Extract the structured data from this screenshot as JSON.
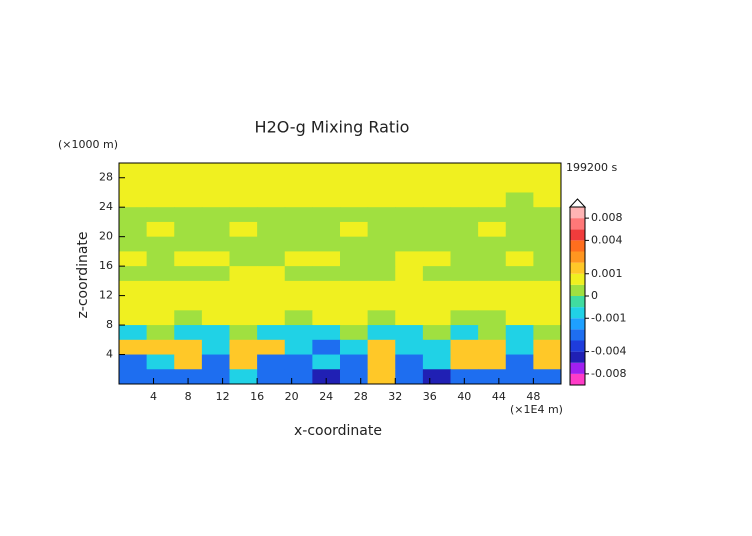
{
  "chart_data": {
    "type": "contour",
    "title": "H2O-g Mixing Ratio",
    "y_unit": "(×1000 m)",
    "x_unit": "(×1E4 m)",
    "time_label": "199200 s",
    "xlabel": "x-coordinate",
    "ylabel": "z-coordinate",
    "xlim": [
      0,
      51.2
    ],
    "ylim": [
      0,
      30
    ],
    "xticks": [
      4,
      8,
      12,
      16,
      20,
      24,
      28,
      32,
      36,
      40,
      44,
      48
    ],
    "yticks": [
      4,
      8,
      12,
      16,
      20,
      24,
      28
    ],
    "z": [
      [
        0.0007,
        0.0007,
        0.0007,
        0.0007,
        0.0007,
        0.0007,
        0.0007,
        0.0007,
        0.0007,
        0.0007,
        0.0007,
        0.0007,
        0.0007,
        0.0007,
        0.0007,
        0.0007
      ],
      [
        0.0007,
        0.0007,
        0.0007,
        0.0007,
        0.0007,
        0.0007,
        0.0007,
        0.0007,
        0.0007,
        0.0007,
        0.0007,
        0.0007,
        0.0007,
        0.0007,
        0.0007,
        0.0007
      ],
      [
        0.0007,
        0.0007,
        0.0007,
        0.0007,
        0.0007,
        0.0007,
        0.0007,
        0.0007,
        0.0007,
        0.0007,
        0.0007,
        0.0007,
        0.0007,
        0.0007,
        0.0002,
        0.0007
      ],
      [
        0.0002,
        0.0002,
        0.0002,
        0.0002,
        0.0002,
        0.0002,
        0.0002,
        0.0002,
        0.0002,
        0.0002,
        0.0002,
        0.0002,
        0.0002,
        0.0002,
        0.0002,
        0.0002
      ],
      [
        0.0002,
        0.0007,
        0.0002,
        0.0002,
        0.0007,
        0.0002,
        0.0002,
        0.0002,
        0.0007,
        0.0002,
        0.0002,
        0.0002,
        0.0002,
        0.0007,
        0.0002,
        0.0002
      ],
      [
        0.0002,
        0.0002,
        0.0002,
        0.0002,
        0.0002,
        0.0002,
        0.0002,
        0.0002,
        0.0002,
        0.0002,
        0.0002,
        0.0002,
        0.0002,
        0.0002,
        0.0002,
        0.0002
      ],
      [
        0.0007,
        0.0002,
        0.0007,
        0.0007,
        0.0002,
        0.0002,
        0.0007,
        0.0007,
        0.0002,
        0.0002,
        0.0007,
        0.0007,
        0.0002,
        0.0002,
        0.0007,
        0.0002
      ],
      [
        0.0002,
        0.0002,
        0.0002,
        0.0002,
        0.0007,
        0.0007,
        0.0002,
        0.0002,
        0.0002,
        0.0002,
        0.0007,
        0.0002,
        0.0002,
        0.0002,
        0.0002,
        0.0002
      ],
      [
        0.0007,
        0.0007,
        0.0007,
        0.0007,
        0.0007,
        0.0007,
        0.0007,
        0.0007,
        0.0007,
        0.0007,
        0.0007,
        0.0007,
        0.0007,
        0.0007,
        0.0007,
        0.0007
      ],
      [
        0.0007,
        0.0007,
        0.0007,
        0.0007,
        0.0007,
        0.0007,
        0.0007,
        0.0007,
        0.0007,
        0.0007,
        0.0007,
        0.0007,
        0.0007,
        0.0007,
        0.0007,
        0.0007
      ],
      [
        0.0007,
        0.0007,
        0.0002,
        0.0007,
        0.0007,
        0.0007,
        0.0002,
        0.0007,
        0.0007,
        0.0002,
        0.0007,
        0.0007,
        0.0002,
        0.0002,
        0.0007,
        0.0007
      ],
      [
        -0.0007,
        0.0002,
        -0.0007,
        -0.0007,
        0.0002,
        -0.0007,
        -0.0007,
        -0.0007,
        0.0002,
        -0.0007,
        -0.0007,
        0.0002,
        -0.0007,
        0.0002,
        -0.0007,
        0.0002
      ],
      [
        0.0015,
        0.0015,
        0.0015,
        -0.0007,
        0.0015,
        0.0015,
        -0.0007,
        -0.0025,
        -0.0007,
        0.0015,
        -0.0007,
        -0.0007,
        0.0015,
        0.0015,
        -0.0007,
        0.0015
      ],
      [
        -0.0025,
        -0.0007,
        0.0015,
        -0.0025,
        0.0015,
        -0.0025,
        -0.0025,
        -0.0007,
        -0.0025,
        0.0015,
        -0.0025,
        -0.0007,
        0.0015,
        0.0015,
        -0.0025,
        0.0015
      ],
      [
        -0.0025,
        -0.0025,
        -0.0025,
        -0.0025,
        -0.0007,
        -0.0025,
        -0.0025,
        -0.0045,
        -0.0025,
        0.0015,
        -0.0025,
        -0.0045,
        -0.0025,
        -0.0025,
        -0.0025,
        -0.0025
      ]
    ],
    "levels": [
      -0.01,
      -0.008,
      -0.006,
      -0.004,
      -0.003,
      -0.002,
      -0.001,
      -0.0005,
      0,
      0.0005,
      0.001,
      0.002,
      0.003,
      0.004,
      0.006,
      0.008,
      0.01
    ],
    "colors": [
      "#ff3cc8",
      "#a020f0",
      "#2020b4",
      "#1e3cdc",
      "#1e6ef0",
      "#1ea0ff",
      "#20d2e6",
      "#40dca0",
      "#a0e040",
      "#f0f020",
      "#ffc828",
      "#ff9620",
      "#ff6e1e",
      "#f03c3c",
      "#ff7878",
      "#ffb4b4"
    ],
    "cticks": [
      0.008,
      0.004,
      0.001,
      0,
      -0.001,
      -0.004,
      -0.008
    ]
  }
}
